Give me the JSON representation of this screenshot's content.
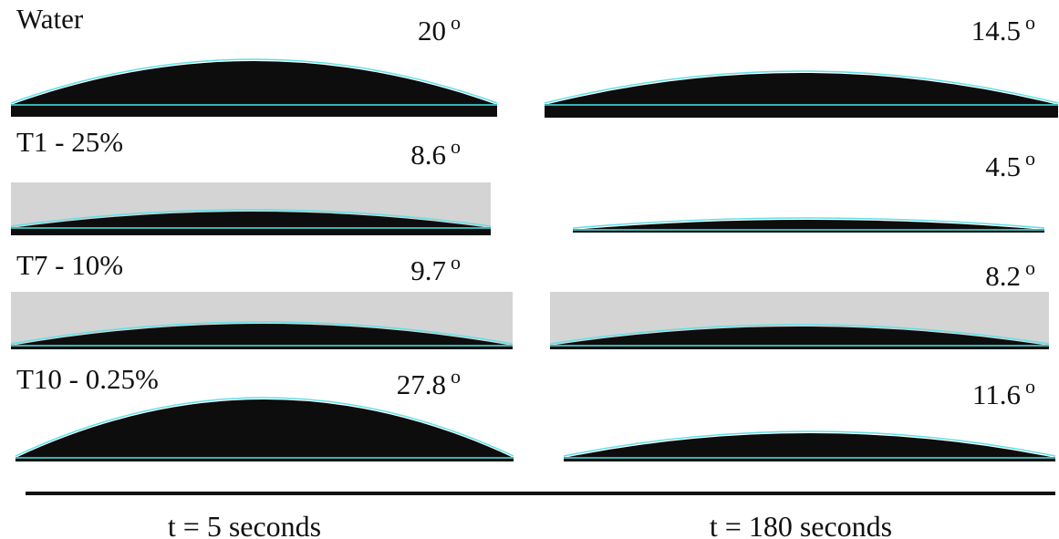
{
  "rows": [
    {
      "label": "Water",
      "left_angle": "20",
      "right_angle": "14.5"
    },
    {
      "label": "T1 - 25%",
      "left_angle": "8.6",
      "right_angle": "4.5"
    },
    {
      "label": "T7 - 10%",
      "left_angle": "9.7",
      "right_angle": "8.2"
    },
    {
      "label": "T10 - 0.25%",
      "left_angle": "27.8",
      "right_angle": "11.6"
    }
  ],
  "angle_unit": "o",
  "columns": [
    "t = 5 seconds",
    "t = 180 seconds"
  ]
}
